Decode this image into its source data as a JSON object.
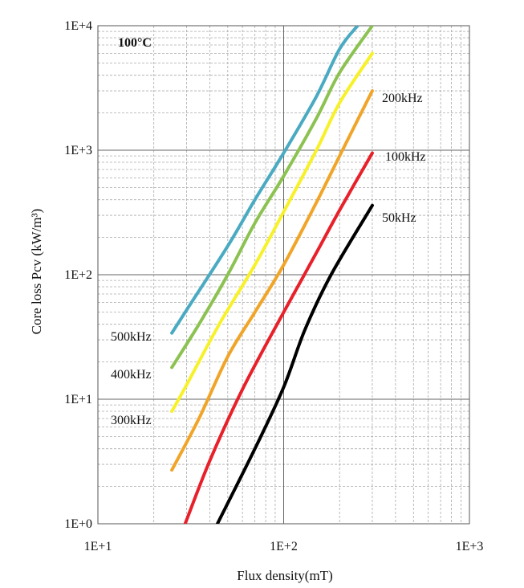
{
  "chart_data": {
    "type": "line",
    "xscale": "log",
    "yscale": "log",
    "title": "",
    "annotation": "100°C",
    "xlabel": "Flux density(mT)",
    "ylabel": "Core loss Pcv (kW/m³)",
    "xlim": [
      10,
      1000
    ],
    "ylim": [
      1,
      10000
    ],
    "x_ticks": [
      10,
      100,
      1000
    ],
    "x_tick_labels": [
      "1E+1",
      "1E+2",
      "1E+3"
    ],
    "y_ticks": [
      1,
      10,
      100,
      1000,
      10000
    ],
    "y_tick_labels": [
      "1E+0",
      "1E+1",
      "1E+2",
      "1E+3",
      "1E+4"
    ],
    "grid": true,
    "series": [
      {
        "name": "50kHz",
        "color": "#000000",
        "points": [
          [
            44,
            1.0
          ],
          [
            70,
            4.0
          ],
          [
            100,
            12.5
          ],
          [
            130,
            36
          ],
          [
            180,
            100
          ],
          [
            300,
            360
          ]
        ]
      },
      {
        "name": "100kHz",
        "color": "#e8202a",
        "points": [
          [
            29.5,
            1.0
          ],
          [
            40,
            3.2
          ],
          [
            60,
            12
          ],
          [
            100,
            50
          ],
          [
            150,
            150
          ],
          [
            200,
            330
          ],
          [
            300,
            950
          ]
        ]
      },
      {
        "name": "200kHz",
        "color": "#f0a528",
        "points": [
          [
            25,
            2.7
          ],
          [
            35,
            7
          ],
          [
            50,
            22
          ],
          [
            70,
            50
          ],
          [
            100,
            120
          ],
          [
            150,
            380
          ],
          [
            200,
            900
          ],
          [
            300,
            3000
          ]
        ]
      },
      {
        "name": "300kHz",
        "color": "#f7f12a",
        "points": [
          [
            25,
            8
          ],
          [
            30,
            13
          ],
          [
            45,
            40
          ],
          [
            70,
            120
          ],
          [
            100,
            320
          ],
          [
            150,
            1000
          ],
          [
            200,
            2400
          ],
          [
            300,
            6000
          ]
        ]
      },
      {
        "name": "400kHz",
        "color": "#8cc251",
        "points": [
          [
            25,
            18
          ],
          [
            35,
            40
          ],
          [
            50,
            100
          ],
          [
            70,
            260
          ],
          [
            100,
            620
          ],
          [
            150,
            1800
          ],
          [
            200,
            4200
          ],
          [
            300,
            10000
          ]
        ]
      },
      {
        "name": "500kHz",
        "color": "#4aaac2",
        "points": [
          [
            25,
            34
          ],
          [
            30,
            52
          ],
          [
            50,
            170
          ],
          [
            70,
            400
          ],
          [
            100,
            950
          ],
          [
            150,
            2700
          ],
          [
            200,
            6500
          ],
          [
            250,
            10000
          ]
        ]
      }
    ]
  }
}
